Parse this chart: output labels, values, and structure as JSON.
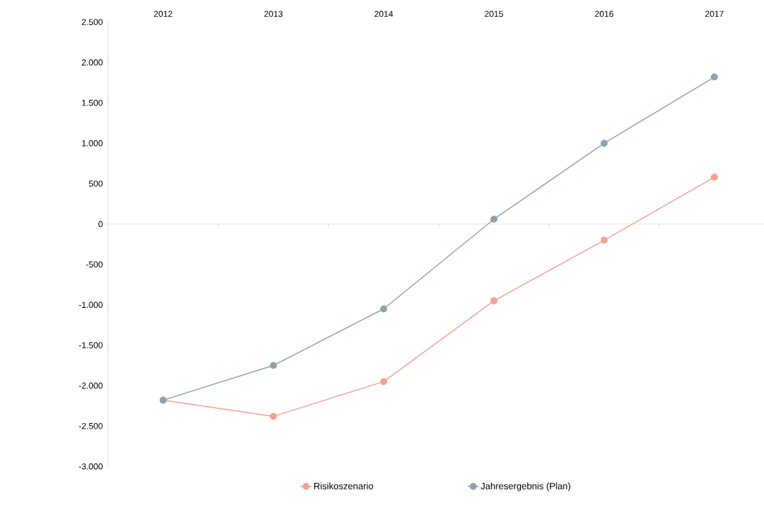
{
  "chart_data": {
    "type": "line",
    "categories": [
      "2012",
      "2013",
      "2014",
      "2015",
      "2016",
      "2017"
    ],
    "series": [
      {
        "name": "Risikoszenario",
        "color": "#f4a08e",
        "values": [
          -2180,
          -2380,
          -1950,
          -950,
          -200,
          580
        ]
      },
      {
        "name": "Jahresergebnis (Plan)",
        "color": "#8ea2ad",
        "values": [
          -2180,
          -1750,
          -1050,
          60,
          1000,
          1820
        ]
      }
    ],
    "ylim": [
      -3000,
      2500
    ],
    "yticks": [
      {
        "value": -3000,
        "label": "-3.000"
      },
      {
        "value": -2500,
        "label": "-2.500"
      },
      {
        "value": -2000,
        "label": "-2.000"
      },
      {
        "value": -1500,
        "label": "-1.500"
      },
      {
        "value": -1000,
        "label": "-1.000"
      },
      {
        "value": -500,
        "label": "-500"
      },
      0,
      500,
      {
        "value": 1000,
        "label": "1.000"
      },
      {
        "value": 1500,
        "label": "1.500"
      },
      {
        "value": 2000,
        "label": "2.000"
      },
      {
        "value": 2500,
        "label": "2.500"
      }
    ],
    "legend": "bottom",
    "marker": "circle",
    "line_style": "solid"
  }
}
